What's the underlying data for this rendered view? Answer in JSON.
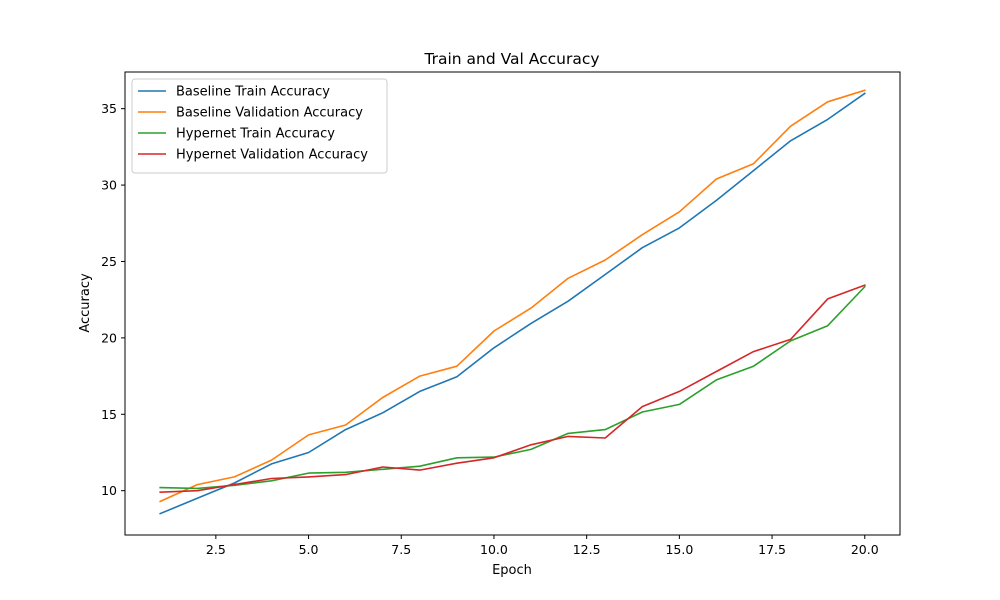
{
  "chart_data": {
    "type": "line",
    "title": "Train and Val Accuracy",
    "xlabel": "Epoch",
    "ylabel": "Accuracy",
    "xlim": [
      0.05,
      20.95
    ],
    "ylim": [
      7.1,
      37.4
    ],
    "xticks": [
      2.5,
      5.0,
      7.5,
      10.0,
      12.5,
      15.0,
      17.5,
      20.0
    ],
    "xtick_labels": [
      "2.5",
      "5.0",
      "7.5",
      "10.0",
      "12.5",
      "15.0",
      "17.5",
      "20.0"
    ],
    "yticks": [
      10,
      15,
      20,
      25,
      30,
      35
    ],
    "ytick_labels": [
      "10",
      "15",
      "20",
      "25",
      "30",
      "35"
    ],
    "grid": false,
    "legend_position": "top-left",
    "x": [
      1,
      2,
      3,
      4,
      5,
      6,
      7,
      8,
      9,
      10,
      11,
      12,
      13,
      14,
      15,
      16,
      17,
      18,
      19,
      20
    ],
    "series": [
      {
        "name": "Baseline Train Accuracy",
        "color": "#1f77b4",
        "values": [
          8.5,
          9.5,
          10.5,
          11.75,
          12.5,
          14.0,
          15.1,
          16.5,
          17.45,
          19.35,
          20.95,
          22.4,
          24.15,
          25.9,
          27.2,
          29.0,
          30.95,
          32.9,
          34.3,
          36.0
        ]
      },
      {
        "name": "Baseline Validation Accuracy",
        "color": "#ff7f0e",
        "values": [
          9.3,
          10.4,
          10.9,
          12.0,
          13.65,
          14.3,
          16.1,
          17.5,
          18.15,
          20.45,
          21.95,
          23.9,
          25.1,
          26.75,
          28.25,
          30.4,
          31.4,
          33.85,
          35.45,
          36.2
        ]
      },
      {
        "name": "Hypernet Train Accuracy",
        "color": "#2ca02c",
        "values": [
          10.2,
          10.15,
          10.35,
          10.65,
          11.15,
          11.2,
          11.4,
          11.6,
          12.15,
          12.2,
          12.7,
          13.75,
          14.0,
          15.15,
          15.65,
          17.25,
          18.15,
          19.8,
          20.8,
          23.35
        ]
      },
      {
        "name": "Hypernet Validation Accuracy",
        "color": "#d62728",
        "values": [
          9.9,
          10.0,
          10.4,
          10.8,
          10.9,
          11.05,
          11.55,
          11.35,
          11.8,
          12.15,
          13.0,
          13.55,
          13.45,
          15.5,
          16.5,
          17.8,
          19.1,
          19.9,
          22.55,
          23.45
        ]
      }
    ]
  }
}
